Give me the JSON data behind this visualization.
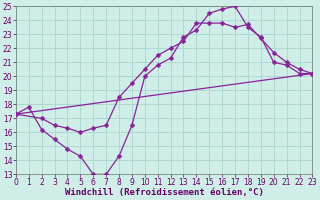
{
  "bg_color": "#d0eee8",
  "grid_color": "#a8d4cc",
  "line_color": "#882299",
  "markersize": 2.5,
  "linewidth": 0.9,
  "xlim": [
    0,
    23
  ],
  "ylim": [
    13,
    25
  ],
  "xticks": [
    0,
    1,
    2,
    3,
    4,
    5,
    6,
    7,
    8,
    9,
    10,
    11,
    12,
    13,
    14,
    15,
    16,
    17,
    18,
    19,
    20,
    21,
    22,
    23
  ],
  "yticks": [
    13,
    14,
    15,
    16,
    17,
    18,
    19,
    20,
    21,
    22,
    23,
    24,
    25
  ],
  "line1_x": [
    0,
    1,
    2,
    3,
    4,
    5,
    6,
    7,
    8,
    9,
    10,
    11,
    12,
    13,
    14,
    15,
    16,
    17,
    18,
    19,
    20,
    21,
    22,
    23
  ],
  "line1_y": [
    17.3,
    17.8,
    16.2,
    15.5,
    14.8,
    14.3,
    13.0,
    13.0,
    14.3,
    16.5,
    20.0,
    20.8,
    21.3,
    22.8,
    23.3,
    24.5,
    24.8,
    25.0,
    23.5,
    22.8,
    21.0,
    20.8,
    20.2,
    20.2
  ],
  "line2_x": [
    0,
    2,
    3,
    4,
    5,
    6,
    7,
    8,
    9,
    10,
    11,
    12,
    13,
    14,
    15,
    16,
    17,
    18,
    19,
    20,
    21,
    22,
    23
  ],
  "line2_y": [
    17.3,
    17.0,
    16.5,
    16.3,
    16.0,
    16.3,
    16.5,
    18.5,
    19.5,
    20.5,
    21.5,
    22.0,
    22.5,
    23.8,
    23.8,
    23.8,
    23.5,
    23.7,
    22.7,
    21.7,
    21.0,
    20.5,
    20.2
  ],
  "line3_x": [
    0,
    23
  ],
  "line3_y": [
    17.3,
    20.2
  ],
  "xlabel": "Windchill (Refroidissement éolien,°C)",
  "xlabel_fontsize": 6.5,
  "tick_fontsize": 5.5,
  "tick_color": "#660066"
}
